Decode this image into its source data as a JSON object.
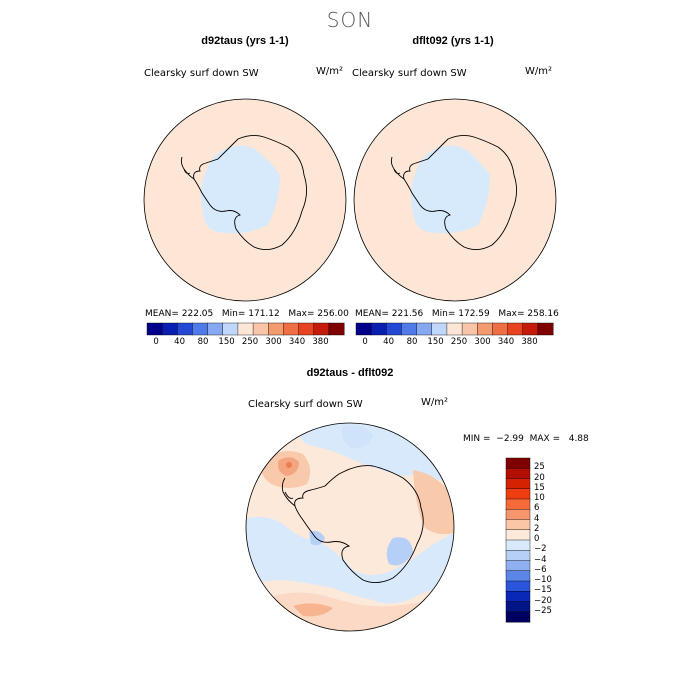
{
  "figure": {
    "season": "SON",
    "panels": [
      {
        "id": "left",
        "title": "d92taus (yrs 1-1)",
        "variable_label": "Clearsky surf down SW",
        "units": "W/m²",
        "stats": {
          "mean": "222.05",
          "min": "171.12",
          "max": "256.00"
        },
        "stats_labels": {
          "mean": "MEAN=",
          "min": "Min=",
          "max": "Max="
        }
      },
      {
        "id": "right",
        "title": "dflt092 (yrs 1-1)",
        "variable_label": "Clearsky surf down SW",
        "units": "W/m²",
        "stats": {
          "mean": "221.56",
          "min": "172.59",
          "max": "258.16"
        },
        "stats_labels": {
          "mean": "MEAN=",
          "min": "Min=",
          "max": "Max="
        }
      }
    ],
    "shared_colorbar": {
      "ticks": [
        "0",
        "40",
        "80",
        "150",
        "250",
        "300",
        "340",
        "380"
      ],
      "colors": [
        "#00008b",
        "#0a1eb0",
        "#2448d4",
        "#4f7ae8",
        "#86a8f0",
        "#c0d6fb",
        "#fde6d6",
        "#f8c5a8",
        "#f39a6e",
        "#ef6f45",
        "#e8431f",
        "#c41b0a",
        "#7f0000"
      ]
    },
    "difference_panel": {
      "title": "d92taus - dflt092",
      "variable_label": "Clearsky surf down SW",
      "units": "W/m²",
      "min_label": "MIN =",
      "min_value": "−2.99",
      "max_label": "MAX =",
      "max_value": "4.88",
      "colorbar": {
        "labels": [
          "25",
          "20",
          "15",
          "10",
          "6",
          "4",
          "2",
          "0",
          "−2",
          "−4",
          "−6",
          "−10",
          "−15",
          "−20",
          "−25"
        ],
        "colors": [
          "#7f0000",
          "#b30f00",
          "#d52200",
          "#ee3d10",
          "#f66a3a",
          "#f7966c",
          "#fbc6a6",
          "#fde9da",
          "#d7e9fb",
          "#b6cff6",
          "#8fb0f0",
          "#5b86e8",
          "#2a55dc",
          "#0a28b8",
          "#031486",
          "#000060"
        ]
      }
    },
    "colors": {
      "background_peach": "#fde6d6",
      "antarctic_blue": "#d6eafc",
      "coastline": "#000000",
      "pos_anom_light": "#fbd9c4",
      "pos_anom_mid": "#f7b48e",
      "pos_anom_strong": "#ee7d50",
      "neg_anom": "#cfe3fa",
      "neg_anom_mid": "#a9c8f4"
    }
  }
}
